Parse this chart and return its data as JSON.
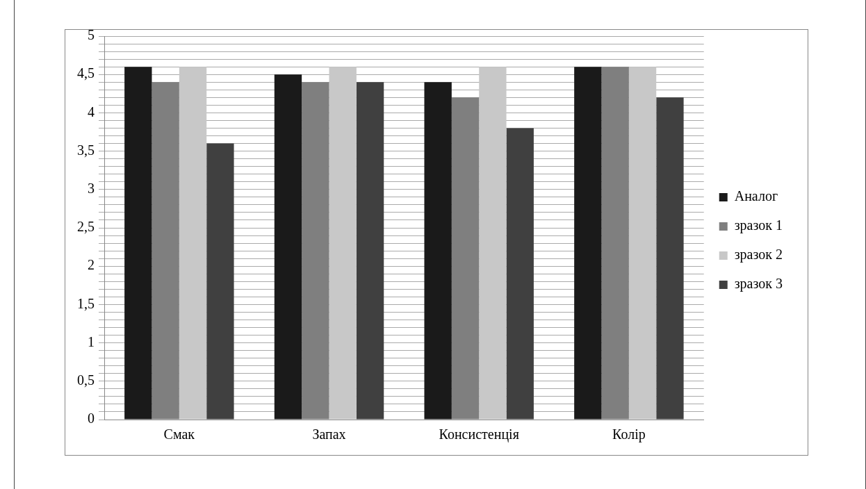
{
  "chart_data": {
    "type": "bar",
    "categories": [
      "Смак",
      "Запах",
      "Консистенція",
      "Колір"
    ],
    "series": [
      {
        "name": "Аналог",
        "color": "#1a1a1a",
        "values": [
          4.6,
          4.5,
          4.4,
          4.6
        ]
      },
      {
        "name": "зразок 1",
        "color": "#7f7f7f",
        "values": [
          4.4,
          4.4,
          4.2,
          4.6
        ]
      },
      {
        "name": "зразок 2",
        "color": "#c8c8c8",
        "values": [
          4.6,
          4.6,
          4.6,
          4.6
        ]
      },
      {
        "name": "зразок 3",
        "color": "#404040",
        "values": [
          3.6,
          4.4,
          3.8,
          4.2
        ]
      }
    ],
    "ylim": [
      0,
      5
    ],
    "yticks": [
      0,
      {
        "value": 0.1,
        "label": null
      },
      {
        "value": 0.2,
        "label": null
      },
      {
        "value": 0.3,
        "label": null
      },
      {
        "value": 0.4,
        "label": null
      },
      {
        "value": 0.5,
        "label": "0,5"
      },
      {
        "value": 0.6,
        "label": null
      },
      {
        "value": 0.7,
        "label": null
      },
      {
        "value": 0.8,
        "label": null
      },
      {
        "value": 0.9,
        "label": null
      },
      1,
      {
        "value": 1.1,
        "label": null
      },
      {
        "value": 1.2,
        "label": null
      },
      {
        "value": 1.3,
        "label": null
      },
      {
        "value": 1.4,
        "label": null
      },
      {
        "value": 1.5,
        "label": "1,5"
      },
      {
        "value": 1.6,
        "label": null
      },
      {
        "value": 1.7,
        "label": null
      },
      {
        "value": 1.8,
        "label": null
      },
      {
        "value": 1.9,
        "label": null
      },
      2,
      {
        "value": 2.1,
        "label": null
      },
      {
        "value": 2.2,
        "label": null
      },
      {
        "value": 2.3,
        "label": null
      },
      {
        "value": 2.4,
        "label": null
      },
      {
        "value": 2.5,
        "label": "2,5"
      },
      {
        "value": 2.6,
        "label": null
      },
      {
        "value": 2.7,
        "label": null
      },
      {
        "value": 2.8,
        "label": null
      },
      {
        "value": 2.9,
        "label": null
      },
      3,
      {
        "value": 3.1,
        "label": null
      },
      {
        "value": 3.2,
        "label": null
      },
      {
        "value": 3.3,
        "label": null
      },
      {
        "value": 3.4,
        "label": null
      },
      {
        "value": 3.5,
        "label": "3,5"
      },
      {
        "value": 3.6,
        "label": null
      },
      {
        "value": 3.7,
        "label": null
      },
      {
        "value": 3.8,
        "label": null
      },
      {
        "value": 3.9,
        "label": null
      },
      4,
      {
        "value": 4.1,
        "label": null
      },
      {
        "value": 4.2,
        "label": null
      },
      {
        "value": 4.3,
        "label": null
      },
      {
        "value": 4.4,
        "label": null
      },
      {
        "value": 4.5,
        "label": "4,5"
      },
      {
        "value": 4.6,
        "label": null
      },
      {
        "value": 4.7,
        "label": null
      },
      {
        "value": 4.8,
        "label": null
      },
      {
        "value": 4.9,
        "label": null
      },
      5
    ],
    "grid": "y",
    "legend": "right"
  }
}
